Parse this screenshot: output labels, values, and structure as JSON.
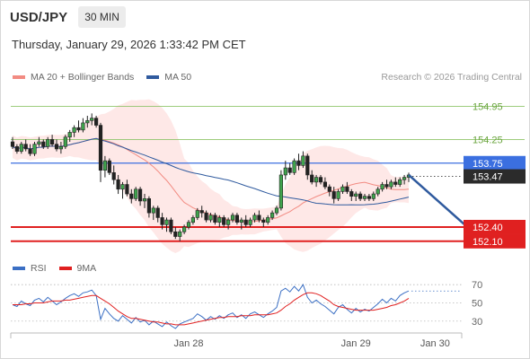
{
  "header": {
    "pair": "USD/JPY",
    "timeframe": "30 MIN",
    "datetime": "Thursday, January 29, 2026 1:33:42 PM CET"
  },
  "legend": {
    "ma20": {
      "label": "MA 20 + Bollinger Bands",
      "color": "#f28b82"
    },
    "ma50": {
      "label": "MA 50",
      "color": "#2f5a9e"
    },
    "credit": "Research © 2026 Trading Central"
  },
  "rsi_legend": {
    "rsi": {
      "label": "RSI",
      "color": "#3b6fc4"
    },
    "ma9": {
      "label": "9MA",
      "color": "#e02020"
    }
  },
  "chart_data": [
    {
      "type": "candlestick",
      "ylim": [
        151.85,
        155.3
      ],
      "x_ticks": [
        {
          "label": "Jan 28",
          "index": 40
        },
        {
          "label": "Jan 29",
          "index": 78
        },
        {
          "label": "Jan 30",
          "index": 96
        }
      ],
      "levels": [
        {
          "value": 154.95,
          "label": "154.95",
          "color": "#8fc46a",
          "style": "resistance"
        },
        {
          "value": 154.25,
          "label": "154.25",
          "color": "#8fc46a",
          "style": "resistance"
        },
        {
          "value": 153.75,
          "label": "153.75",
          "color": "#3b6fe0",
          "style": "pivot"
        },
        {
          "value": 152.4,
          "label": "152.40",
          "color": "#e02020",
          "style": "support"
        },
        {
          "value": 152.1,
          "label": "152.10",
          "color": "#e02020",
          "style": "support"
        }
      ],
      "last_price": {
        "value": 153.47,
        "label": "153.47"
      },
      "candles": [
        [
          154.2,
          154.3,
          154.05,
          154.1
        ],
        [
          154.1,
          154.15,
          153.95,
          154.0
        ],
        [
          154.0,
          154.2,
          153.95,
          154.15
        ],
        [
          154.15,
          154.25,
          154.0,
          154.05
        ],
        [
          154.05,
          154.15,
          153.9,
          153.95
        ],
        [
          153.95,
          154.2,
          153.9,
          154.15
        ],
        [
          154.15,
          154.3,
          154.1,
          154.2
        ],
        [
          154.2,
          154.25,
          154.05,
          154.1
        ],
        [
          154.1,
          154.3,
          154.05,
          154.25
        ],
        [
          154.25,
          154.35,
          154.1,
          154.15
        ],
        [
          154.15,
          154.25,
          154.0,
          154.05
        ],
        [
          154.05,
          154.2,
          153.95,
          154.1
        ],
        [
          154.1,
          154.35,
          154.05,
          154.3
        ],
        [
          154.3,
          154.45,
          154.2,
          154.4
        ],
        [
          154.4,
          154.55,
          154.3,
          154.5
        ],
        [
          154.5,
          154.65,
          154.4,
          154.45
        ],
        [
          154.45,
          154.7,
          154.4,
          154.6
        ],
        [
          154.6,
          154.75,
          154.5,
          154.65
        ],
        [
          154.65,
          154.8,
          154.55,
          154.7
        ],
        [
          154.7,
          154.75,
          154.5,
          154.55
        ],
        [
          154.55,
          154.6,
          153.35,
          153.6
        ],
        [
          153.6,
          153.9,
          153.45,
          153.8
        ],
        [
          153.8,
          153.85,
          153.5,
          153.55
        ],
        [
          153.55,
          153.7,
          153.3,
          153.4
        ],
        [
          153.4,
          153.5,
          153.1,
          153.2
        ],
        [
          153.2,
          153.35,
          153.0,
          153.3
        ],
        [
          153.3,
          153.4,
          153.05,
          153.1
        ],
        [
          153.1,
          153.2,
          152.9,
          153.0
        ],
        [
          153.0,
          153.25,
          152.95,
          153.2
        ],
        [
          153.2,
          153.25,
          152.85,
          152.95
        ],
        [
          152.95,
          153.1,
          152.8,
          153.0
        ],
        [
          153.0,
          153.05,
          152.6,
          152.7
        ],
        [
          152.7,
          152.85,
          152.55,
          152.8
        ],
        [
          152.8,
          152.85,
          152.5,
          152.6
        ],
        [
          152.6,
          152.7,
          152.35,
          152.45
        ],
        [
          152.45,
          152.6,
          152.3,
          152.55
        ],
        [
          152.55,
          152.6,
          152.25,
          152.3
        ],
        [
          152.3,
          152.4,
          152.15,
          152.2
        ],
        [
          152.2,
          152.35,
          152.1,
          152.3
        ],
        [
          152.3,
          152.45,
          152.25,
          152.4
        ],
        [
          152.4,
          152.55,
          152.35,
          152.5
        ],
        [
          152.5,
          152.65,
          152.45,
          152.6
        ],
        [
          152.6,
          152.8,
          152.55,
          152.75
        ],
        [
          152.75,
          152.85,
          152.6,
          152.7
        ],
        [
          152.7,
          152.75,
          152.5,
          152.55
        ],
        [
          152.55,
          152.7,
          152.5,
          152.65
        ],
        [
          152.65,
          152.7,
          152.45,
          152.5
        ],
        [
          152.5,
          152.65,
          152.4,
          152.6
        ],
        [
          152.6,
          152.65,
          152.4,
          152.45
        ],
        [
          152.45,
          152.6,
          152.35,
          152.55
        ],
        [
          152.55,
          152.7,
          152.5,
          152.65
        ],
        [
          152.65,
          152.7,
          152.45,
          152.5
        ],
        [
          152.5,
          152.6,
          152.35,
          152.55
        ],
        [
          152.55,
          152.65,
          152.4,
          152.45
        ],
        [
          152.45,
          152.6,
          152.4,
          152.55
        ],
        [
          152.55,
          152.7,
          152.5,
          152.65
        ],
        [
          152.65,
          152.75,
          152.5,
          152.55
        ],
        [
          152.55,
          152.6,
          152.4,
          152.5
        ],
        [
          152.5,
          152.65,
          152.45,
          152.6
        ],
        [
          152.6,
          152.75,
          152.55,
          152.7
        ],
        [
          152.7,
          152.85,
          152.65,
          152.8
        ],
        [
          152.8,
          153.6,
          152.75,
          153.5
        ],
        [
          153.5,
          153.8,
          153.4,
          153.65
        ],
        [
          153.65,
          153.75,
          153.5,
          153.55
        ],
        [
          153.55,
          153.85,
          153.5,
          153.8
        ],
        [
          153.8,
          153.95,
          153.6,
          153.7
        ],
        [
          153.7,
          154.0,
          153.65,
          153.9
        ],
        [
          153.9,
          153.95,
          153.4,
          153.5
        ],
        [
          153.5,
          153.6,
          153.3,
          153.35
        ],
        [
          153.35,
          153.5,
          153.25,
          153.45
        ],
        [
          153.45,
          153.5,
          153.3,
          153.35
        ],
        [
          153.35,
          153.45,
          153.2,
          153.25
        ],
        [
          153.25,
          153.3,
          153.05,
          153.15
        ],
        [
          153.15,
          153.25,
          152.9,
          153.0
        ],
        [
          153.0,
          153.2,
          152.95,
          153.15
        ],
        [
          153.15,
          153.3,
          153.1,
          153.25
        ],
        [
          153.25,
          153.35,
          153.1,
          153.15
        ],
        [
          153.15,
          153.2,
          152.95,
          153.05
        ],
        [
          153.05,
          153.15,
          152.95,
          153.1
        ],
        [
          153.1,
          153.15,
          152.95,
          153.0
        ],
        [
          153.0,
          153.1,
          152.95,
          153.05
        ],
        [
          153.05,
          153.1,
          152.95,
          153.0
        ],
        [
          153.0,
          153.15,
          152.95,
          153.1
        ],
        [
          153.1,
          153.25,
          153.05,
          153.2
        ],
        [
          153.2,
          153.35,
          153.15,
          153.3
        ],
        [
          153.3,
          153.4,
          153.2,
          153.25
        ],
        [
          153.25,
          153.4,
          153.2,
          153.35
        ],
        [
          153.35,
          153.45,
          153.25,
          153.3
        ],
        [
          153.3,
          153.45,
          153.25,
          153.4
        ],
        [
          153.4,
          153.5,
          153.3,
          153.45
        ],
        [
          153.45,
          153.55,
          153.35,
          153.5
        ]
      ],
      "forecast": {
        "from_index": 90,
        "from_value": 153.5,
        "to_index": 106,
        "to_value": 152.1
      }
    },
    {
      "type": "line",
      "name": "RSI",
      "ylim": [
        20,
        75
      ],
      "y_ticks": [
        70,
        50,
        30
      ],
      "series": [
        {
          "name": "RSI",
          "color": "#3b6fc4",
          "values": [
            48,
            46,
            52,
            49,
            47,
            53,
            55,
            51,
            56,
            52,
            48,
            51,
            55,
            58,
            60,
            57,
            61,
            62,
            64,
            58,
            32,
            44,
            38,
            33,
            30,
            36,
            32,
            28,
            34,
            29,
            31,
            26,
            30,
            27,
            24,
            29,
            25,
            22,
            27,
            29,
            31,
            33,
            38,
            35,
            31,
            35,
            32,
            36,
            33,
            37,
            39,
            34,
            37,
            33,
            38,
            40,
            37,
            34,
            38,
            41,
            45,
            63,
            66,
            62,
            68,
            63,
            70,
            56,
            50,
            53,
            49,
            46,
            42,
            38,
            45,
            48,
            43,
            39,
            44,
            40,
            43,
            41,
            45,
            49,
            54,
            50,
            55,
            52,
            58,
            61,
            63
          ]
        },
        {
          "name": "9MA",
          "color": "#e02020",
          "values": [
            48,
            48,
            48,
            49,
            49,
            50,
            50,
            50,
            51,
            52,
            52,
            52,
            53,
            53,
            54,
            55,
            56,
            57,
            58,
            58,
            55,
            52,
            49,
            45,
            41,
            38,
            35,
            33,
            33,
            32,
            31,
            30,
            29,
            29,
            28,
            27,
            27,
            26,
            26,
            26,
            27,
            28,
            29,
            30,
            31,
            32,
            33,
            34,
            34,
            35,
            35,
            35,
            36,
            36,
            36,
            37,
            37,
            37,
            37,
            38,
            39,
            42,
            46,
            49,
            53,
            56,
            59,
            61,
            61,
            60,
            58,
            55,
            52,
            48,
            46,
            45,
            44,
            43,
            42,
            42,
            42,
            42,
            42,
            43,
            44,
            45,
            47,
            48,
            50,
            52,
            55
          ]
        }
      ]
    }
  ]
}
